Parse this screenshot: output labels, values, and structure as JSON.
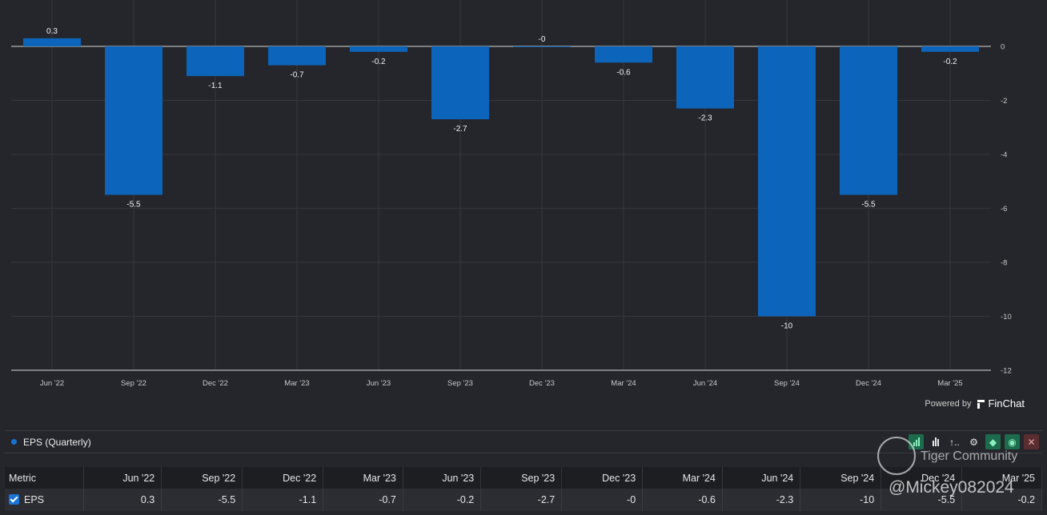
{
  "chart_data": {
    "type": "bar",
    "categories": [
      "Jun '22",
      "Sep '22",
      "Dec '22",
      "Mar '23",
      "Jun '23",
      "Sep '23",
      "Dec '23",
      "Mar '24",
      "Jun '24",
      "Sep '24",
      "Dec '24",
      "Mar '25"
    ],
    "values": [
      0.3,
      -5.5,
      -1.1,
      -0.7,
      -0.2,
      -2.7,
      0,
      -0.6,
      -2.3,
      -10,
      -5.5,
      -0.2
    ],
    "data_labels": [
      "0.3",
      "-5.5",
      "-1.1",
      "-0.7",
      "-0.2",
      "-2.7",
      "-0",
      "-0.6",
      "-2.3",
      "-10",
      "-5.5",
      "-0.2"
    ],
    "ylim": [
      -12,
      0
    ],
    "yticks": [
      0,
      -2,
      -4,
      -6,
      -8,
      -10,
      -12
    ],
    "grid": true,
    "y_axis_position": "right",
    "bar_color": "#0c65bb"
  },
  "powered_by": {
    "label": "Powered by",
    "brand": "FinChat"
  },
  "legend": {
    "label": "EPS (Quarterly)",
    "color": "#1673d1"
  },
  "toolbar": {
    "icons": [
      "bar-chart-icon",
      "bar-chart-alt-icon",
      "sort-icon",
      "gear-icon",
      "tag-icon",
      "eye-icon",
      "close-icon"
    ],
    "sort_label": "↑.."
  },
  "table": {
    "header": [
      "Metric",
      "Jun '22",
      "Sep '22",
      "Dec '22",
      "Mar '23",
      "Jun '23",
      "Sep '23",
      "Dec '23",
      "Mar '24",
      "Jun '24",
      "Sep '24",
      "Dec '24",
      "Mar '25"
    ],
    "row": {
      "metric": "EPS",
      "values": [
        "0.3",
        "-5.5",
        "-1.1",
        "-0.7",
        "-0.2",
        "-2.7",
        "-0",
        "-0.6",
        "-2.3",
        "-10",
        "-5.5",
        "-0.2"
      ]
    }
  },
  "watermark": {
    "line1": "Tiger Community",
    "line2": "@Mickey082024"
  }
}
